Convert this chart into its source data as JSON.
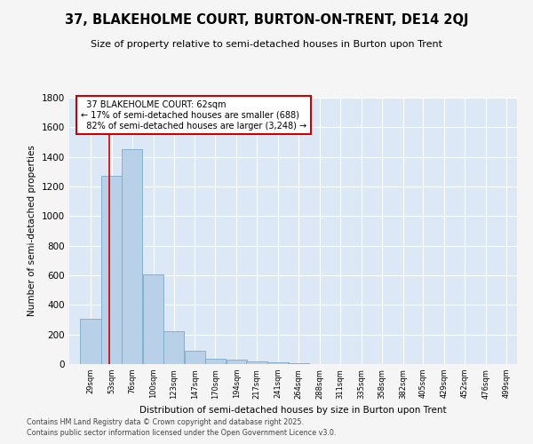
{
  "title": "37, BLAKEHOLME COURT, BURTON-ON-TRENT, DE14 2QJ",
  "subtitle": "Size of property relative to semi-detached houses in Burton upon Trent",
  "xlabel": "Distribution of semi-detached houses by size in Burton upon Trent",
  "ylabel": "Number of semi-detached properties",
  "property_label": "37 BLAKEHOLME COURT: 62sqm",
  "pct_smaller": 17,
  "pct_larger": 82,
  "n_smaller": 688,
  "n_larger": 3248,
  "bin_labels": [
    "29sqm",
    "53sqm",
    "76sqm",
    "100sqm",
    "123sqm",
    "147sqm",
    "170sqm",
    "194sqm",
    "217sqm",
    "241sqm",
    "264sqm",
    "288sqm",
    "311sqm",
    "335sqm",
    "358sqm",
    "382sqm",
    "405sqm",
    "429sqm",
    "452sqm",
    "476sqm",
    "499sqm"
  ],
  "bin_edges": [
    29,
    53,
    76,
    100,
    123,
    147,
    170,
    194,
    217,
    241,
    264,
    288,
    311,
    335,
    358,
    382,
    405,
    429,
    452,
    476,
    499
  ],
  "bar_heights": [
    305,
    1275,
    1450,
    605,
    220,
    88,
    38,
    28,
    20,
    10,
    8,
    0,
    0,
    0,
    0,
    0,
    0,
    0,
    0,
    0
  ],
  "bar_color": "#b8d0e8",
  "bar_edge_color": "#7aaac8",
  "vline_color": "#cc0000",
  "vline_x": 62,
  "annotation_box_color": "#cc0000",
  "plot_bg_color": "#dce8f5",
  "fig_bg_color": "#f5f5f5",
  "ylim": [
    0,
    1800
  ],
  "yticks": [
    0,
    200,
    400,
    600,
    800,
    1000,
    1200,
    1400,
    1600,
    1800
  ],
  "footer1": "Contains HM Land Registry data © Crown copyright and database right 2025.",
  "footer2": "Contains public sector information licensed under the Open Government Licence v3.0."
}
